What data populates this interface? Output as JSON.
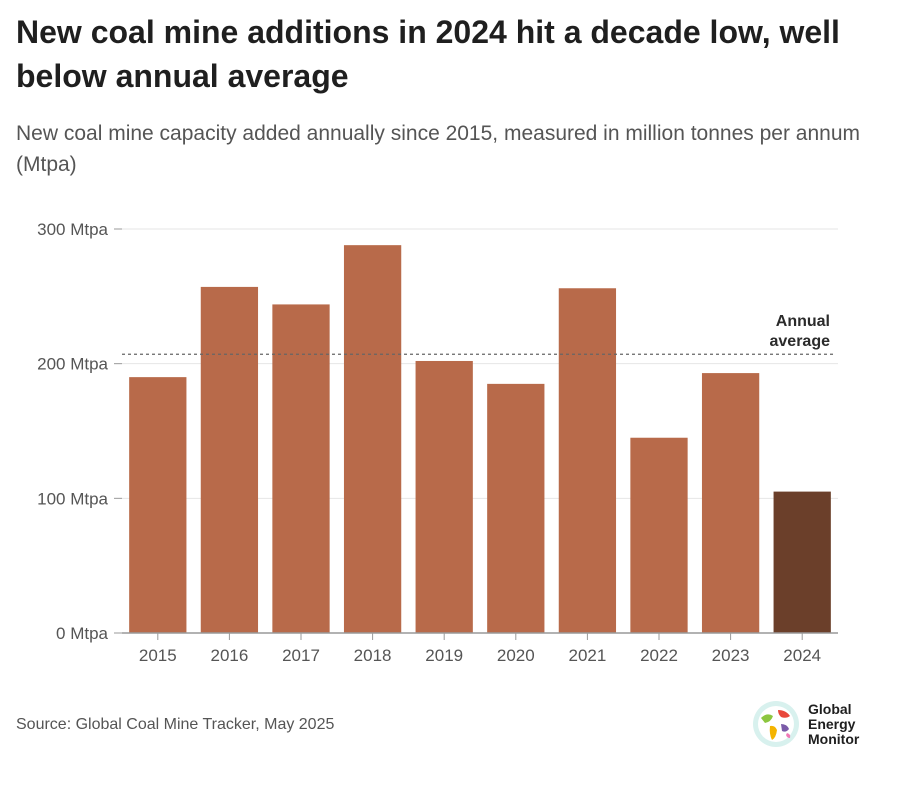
{
  "title": "New coal mine additions in 2024 hit a decade low, well below annual average",
  "subtitle": "New coal mine capacity added annually since 2015, measured in million tonnes per annum (Mtpa)",
  "source": "Source: Global Coal Mine Tracker, May 2025",
  "logo": {
    "line1": "Global",
    "line2": "Energy",
    "line3": "Monitor",
    "icon": "globe-icon"
  },
  "colors": {
    "bar": "#b86a4a",
    "highlight": "#6b3f2a",
    "average_line": "#666666",
    "grid": "#e6e6e6",
    "axis": "#999999"
  },
  "chart_data": {
    "type": "bar",
    "title": "New coal mine additions in 2024 hit a decade low, well below annual average",
    "subtitle": "New coal mine capacity added annually since 2015, measured in million tonnes per annum (Mtpa)",
    "categories": [
      "2015",
      "2016",
      "2017",
      "2018",
      "2019",
      "2020",
      "2021",
      "2022",
      "2023",
      "2024"
    ],
    "values": [
      190,
      257,
      244,
      288,
      202,
      185,
      256,
      145,
      193,
      105
    ],
    "highlight_index": 9,
    "ylim": [
      0,
      300
    ],
    "yticks": [
      0,
      100,
      200,
      300
    ],
    "ytick_labels": [
      "0 Mtpa",
      "100 Mtpa",
      "200 Mtpa",
      "300 Mtpa"
    ],
    "grid": true,
    "annotations": [
      {
        "type": "reference-line",
        "value": 207,
        "label_lines": [
          "Annual",
          "average"
        ]
      }
    ]
  }
}
